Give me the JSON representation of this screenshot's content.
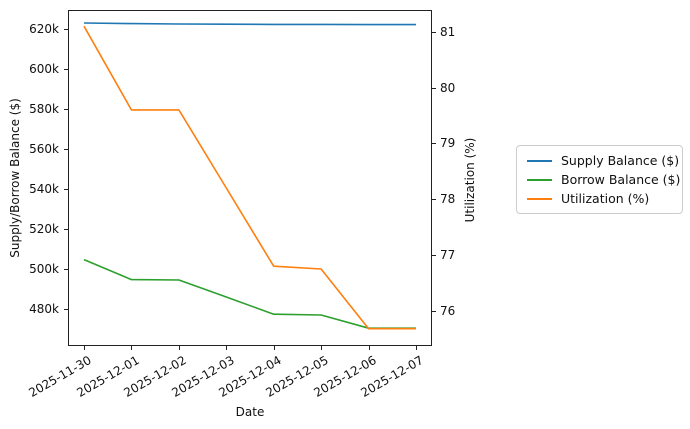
{
  "chart_data": {
    "type": "line",
    "title": "",
    "xlabel": "Date",
    "x_labels": [
      "2025-11-30",
      "2025-12-01",
      "2025-12-02",
      "2025-12-03",
      "2025-12-04",
      "2025-12-05",
      "2025-12-06",
      "2025-12-07"
    ],
    "left_axis": {
      "label": "Supply/Borrow Balance ($)",
      "min": 461500,
      "max": 629500,
      "ticks": [
        {
          "label": "620k",
          "value": 620000
        },
        {
          "label": "600k",
          "value": 600000
        },
        {
          "label": "580k",
          "value": 580000
        },
        {
          "label": "560k",
          "value": 560000
        },
        {
          "label": "540k",
          "value": 540000
        },
        {
          "label": "520k",
          "value": 520000
        },
        {
          "label": "500k",
          "value": 500000
        },
        {
          "label": "480k",
          "value": 480000
        }
      ]
    },
    "right_axis": {
      "label": "Utilization (%)",
      "min": 75.37,
      "max": 81.39,
      "ticks": [
        {
          "label": "81",
          "value": 81
        },
        {
          "label": "80",
          "value": 80
        },
        {
          "label": "79",
          "value": 79
        },
        {
          "label": "78",
          "value": 78
        },
        {
          "label": "77",
          "value": 77
        },
        {
          "label": "76",
          "value": 76
        }
      ]
    },
    "series": [
      {
        "name": "Supply Balance ($)",
        "axis": "left",
        "color": "#1f77b4",
        "values": [
          623000,
          622700,
          622500,
          622400,
          622300,
          622300,
          622200,
          622200
        ]
      },
      {
        "name": "Borrow Balance ($)",
        "axis": "left",
        "color": "#2ca02c",
        "values": [
          504700,
          494700,
          494500,
          486000,
          477400,
          477000,
          470400,
          470400
        ]
      },
      {
        "name": "Utilization (%)",
        "axis": "right",
        "color": "#ff7f0e",
        "values": [
          81.1,
          79.6,
          79.6,
          78.2,
          76.8,
          76.75,
          75.68,
          75.68
        ]
      }
    ],
    "legend": {
      "position": "center-right",
      "entries": [
        "Supply Balance ($)",
        "Borrow Balance ($)",
        "Utilization (%)"
      ]
    }
  }
}
